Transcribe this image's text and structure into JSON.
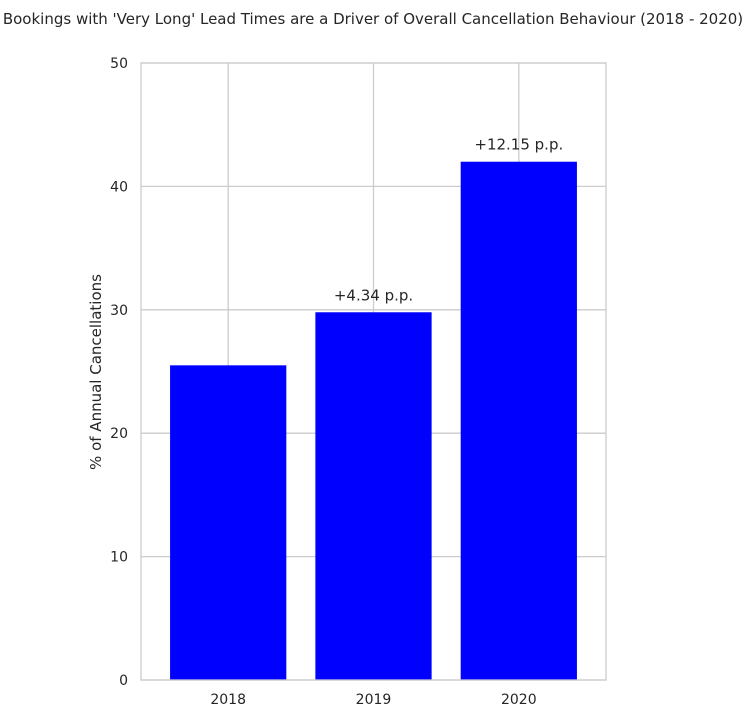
{
  "chart_data": {
    "type": "bar",
    "title": "Bookings with 'Very Long' Lead Times are a Driver of Overall Cancellation Behaviour (2018 - 2020)",
    "xlabel": "",
    "ylabel": "% of Annual Cancellations",
    "categories": [
      "2018",
      "2019",
      "2020"
    ],
    "values": [
      25.5,
      29.8,
      42.0
    ],
    "annotations": [
      "",
      "+4.34 p.p.",
      "+12.15 p.p."
    ],
    "ylim": [
      0,
      50
    ],
    "yticks": [
      "0",
      "10",
      "20",
      "30",
      "40",
      "50"
    ],
    "grid": true,
    "bar_color": "#0000ff",
    "grid_color": "#cccccc"
  }
}
